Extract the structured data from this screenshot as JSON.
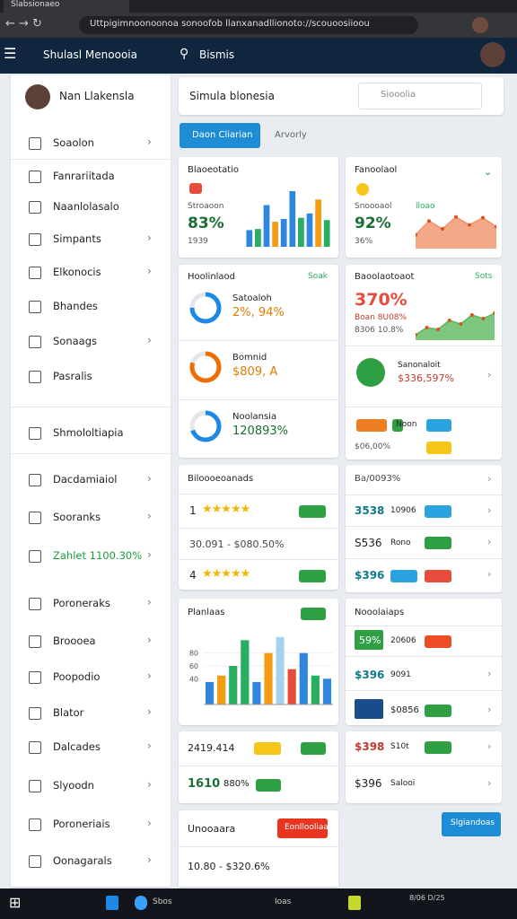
{
  "browser": {
    "tab_title": "Slabsionaeo",
    "url": "Uttpigimnoonoonoa sonoofob llanxanadllionoto://scouoosiioou"
  },
  "header": {
    "brand": "Shulasl Menoooia",
    "search": "Bismis"
  },
  "sidebar": {
    "user": "Nan Llakensla",
    "items": [
      "Soaolon",
      "Fanrariitada",
      "Naanlolasalo",
      "Simpants",
      "Elkonocis",
      "Bhandes",
      "Sonaags",
      "Pasralis",
      "Shmololtiapia",
      "Dacdamiaiol",
      "Sooranks",
      "Zahlet 1100.30%",
      "Poroneraks",
      "Broooea",
      "Poopodio",
      "Blator",
      "Dalcades",
      "Slyoodn",
      "Poroneriais",
      "Oonagarals"
    ]
  },
  "main": {
    "title": "Simula blonesia",
    "search": "Siooolia",
    "tabs": [
      "Daon Cliarian",
      "Arvorly"
    ]
  },
  "cards": {
    "c1": {
      "title": "Blaoeotatio",
      "label": "Stroaoon",
      "value": "83%",
      "sub": "1939",
      "chart": {
        "type": "bar",
        "values": [
          30,
          32,
          75,
          45,
          50,
          100,
          52,
          60,
          85,
          48
        ],
        "colors": [
          "#2e86de",
          "#27ae60",
          "#2e86de",
          "#f39c12",
          "#2e86de",
          "#2e86de",
          "#27ae60",
          "#2e86de",
          "#f39c12",
          "#27ae60"
        ],
        "ylim": [
          0,
          100
        ]
      }
    },
    "c2": {
      "title": "Fanoolaol",
      "label": "Snoooaol",
      "label2": "lloao",
      "value": "92%",
      "sub": "36%",
      "chart": {
        "type": "area",
        "values": [
          35,
          70,
          50,
          80,
          60,
          78,
          55
        ],
        "color": "#f0946a",
        "ylim": [
          0,
          100
        ]
      }
    },
    "c3": {
      "title": "Hoolinlaod",
      "badge": "Soak",
      "rows": [
        {
          "name": "Satoaloh",
          "value": "2%, 94%",
          "percent": 75,
          "color": "#1e88e5"
        },
        {
          "name": "Bomnid",
          "value": "$809, A",
          "percent": 80,
          "color": "#ef6c00"
        },
        {
          "name": "Noolansia",
          "value": "120893%",
          "percent": 70,
          "color": "#1e88e5"
        }
      ]
    },
    "c4": {
      "title": "Baoolaotoaot",
      "badge": "Sots",
      "value": "370%",
      "sub1": "Boan 8U08%",
      "sub2": "8306 10.8%",
      "chart": {
        "type": "area",
        "values": [
          15,
          35,
          30,
          55,
          45,
          70,
          60,
          75
        ],
        "color": "#5cb85c",
        "ylim": [
          0,
          100
        ]
      },
      "item": "Sanonaloit",
      "item_value": "$336,597%",
      "chip": "Noon",
      "foot": "$06,00%"
    },
    "c5": {
      "title": "Biloooeoanads",
      "rows": [
        "1",
        "30.091 - $080.50%",
        "4"
      ]
    },
    "c6": {
      "title": "Ba/0093%",
      "rows": [
        [
          "3538",
          "10906"
        ],
        [
          "S536",
          "Rono"
        ],
        [
          "$396"
        ]
      ]
    },
    "c7": {
      "title": "Planlaas",
      "chart": {
        "type": "bar",
        "values": [
          35,
          45,
          60,
          100,
          35,
          80,
          105,
          55,
          80,
          45,
          40
        ],
        "colors": [
          "#2e86de",
          "#f39c12",
          "#27ae60",
          "#27ae60",
          "#2e86de",
          "#f39c12",
          "#a8d1f0",
          "#e74c3c",
          "#2e86de",
          "#27ae60",
          "#2e86de"
        ],
        "ylim": [
          0,
          120
        ],
        "yticks": [
          40,
          60,
          80
        ]
      }
    },
    "c8": {
      "title": "Nooolaiaps",
      "rows": [
        [
          "59%",
          "20606"
        ],
        [
          "$396",
          "9091"
        ],
        [
          "$0856"
        ]
      ]
    },
    "c9": {
      "rows": [
        "2419.414",
        "1610",
        "880%"
      ]
    },
    "c10": {
      "rows": [
        [
          "$398",
          "S10t"
        ],
        [
          "$396",
          "Salooi"
        ]
      ]
    },
    "c11": {
      "title": "Unooaara",
      "button": "Eonllooliaa",
      "text": "10.80 - $320.6%"
    },
    "action": "Slgiandoas"
  },
  "taskbar": {
    "items": [
      "Sbos",
      "Ioas"
    ],
    "clock": "8/06 D/25"
  }
}
